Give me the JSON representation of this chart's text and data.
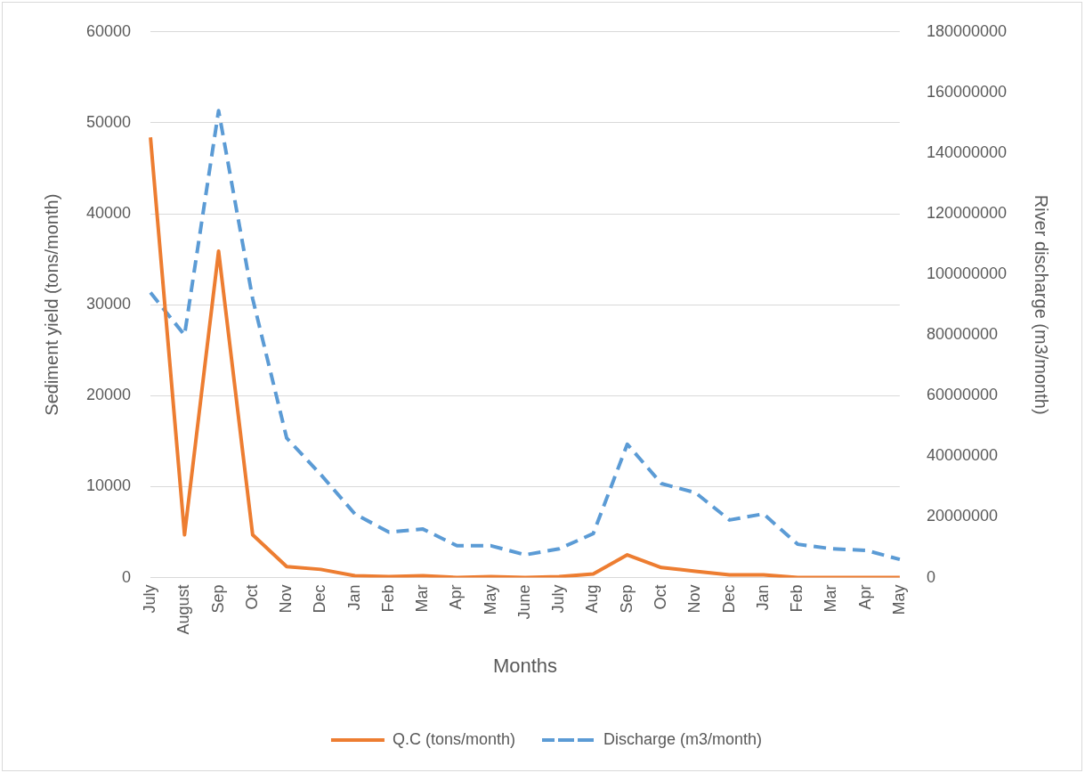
{
  "chart_data": {
    "type": "line",
    "xlabel": "Months",
    "ylabel": "Sediment yield (tons/month)",
    "y2label": "River discharge (m3/month)",
    "categories": [
      "July",
      "August",
      "Sep",
      "Oct",
      "Nov",
      "Dec",
      "Jan",
      "Feb",
      "Mar",
      "Apr",
      "May",
      "June",
      "July",
      "Aug",
      "Sep",
      "Oct",
      "Nov",
      "Dec",
      "Jan",
      "Feb",
      "Mar",
      "Apr",
      "May"
    ],
    "series": [
      {
        "name": "Q.C (tons/month)",
        "color": "#ed7d31",
        "line_style": "solid",
        "values": [
          48400,
          4700,
          35900,
          4700,
          1200,
          900,
          200,
          100,
          200,
          0,
          100,
          0,
          100,
          400,
          2500,
          1100,
          700,
          300,
          300,
          0,
          0,
          0,
          0
        ]
      },
      {
        "name": "Discharge (m3/month)",
        "color": "#5b9bd5",
        "line_style": "dashed",
        "axis": "y2",
        "values": [
          94000000,
          80000000,
          154000000,
          92000000,
          46000000,
          34000000,
          21000000,
          15000000,
          16000000,
          10500000,
          10500000,
          7500000,
          9500000,
          14500000,
          44000000,
          31000000,
          28000000,
          19000000,
          21000000,
          11000000,
          9500000,
          9000000,
          6000000
        ]
      }
    ],
    "ylim": [
      0,
      60000
    ],
    "yticks": [
      0,
      10000,
      20000,
      30000,
      40000,
      50000,
      60000
    ],
    "y2lim": [
      0,
      180000000
    ],
    "y2ticks": [
      0,
      20000000,
      40000000,
      60000000,
      80000000,
      100000000,
      120000000,
      140000000,
      160000000,
      180000000
    ],
    "grid": "y",
    "legend": "bottom",
    "marker": "none"
  }
}
